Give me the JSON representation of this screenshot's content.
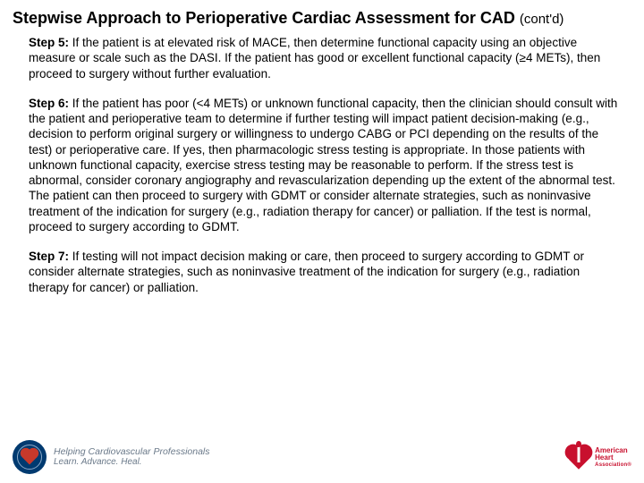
{
  "title_main": "Stepwise Approach to Perioperative Cardiac Assessment for CAD",
  "title_sub": "(cont'd)",
  "steps": [
    {
      "label": "Step 5:",
      "text": " If the patient is at elevated risk of MACE, then determine functional capacity using an objective measure or scale such as the DASI. If the patient has good or excellent functional capacity (≥4 METs), then proceed to surgery without further evaluation."
    },
    {
      "label": "Step 6:",
      "text": " If the patient has poor (<4 METs) or unknown functional capacity, then the clinician should consult with the patient and perioperative team to determine if further testing will impact patient decision-making (e.g., decision to perform original surgery or willingness to undergo CABG or PCI depending on the results of the test) or perioperative care. If yes, then pharmacologic stress testing is appropriate. In those patients with unknown functional capacity, exercise stress testing may be reasonable to perform. If the stress test is abnormal, consider coronary angiography and revascularization depending up the extent of the abnormal test. The patient can then proceed to surgery with GDMT or consider alternate strategies, such as noninvasive treatment of the indication for surgery (e.g., radiation therapy for cancer) or palliation. If the test is normal, proceed to surgery according to GDMT."
    },
    {
      "label": "Step 7:",
      "text": " If testing will not impact decision making or care, then proceed to surgery according to GDMT or consider alternate strategies, such as noninvasive treatment of the indication for surgery (e.g., radiation therapy for cancer) or palliation."
    }
  ],
  "footer_left_line1": "Helping Cardiovascular Professionals",
  "footer_left_line2": "Learn. Advance. Heal.",
  "aha_line1": "American",
  "aha_line2": "Heart",
  "aha_line3": "Association®"
}
